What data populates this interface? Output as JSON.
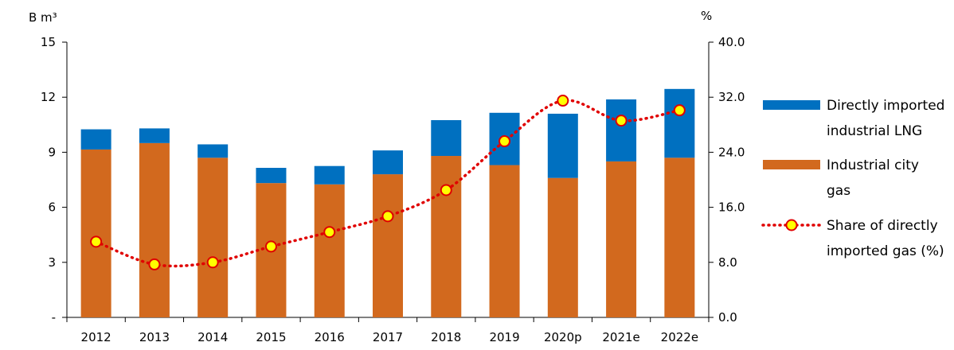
{
  "chart_data": {
    "type": "bar",
    "stacked": true,
    "categories": [
      "2012",
      "2013",
      "2014",
      "2015",
      "2016",
      "2017",
      "2018",
      "2019",
      "2020p",
      "2021e",
      "2022e"
    ],
    "series": [
      {
        "name": "Industrial city gas",
        "type": "bar",
        "axis": "left",
        "color": "#D2691E",
        "values": [
          9.15,
          9.5,
          8.7,
          7.32,
          7.25,
          7.8,
          8.8,
          8.3,
          7.6,
          8.5,
          8.7
        ]
      },
      {
        "name": "Directly imported industrial LNG",
        "type": "bar",
        "axis": "left",
        "color": "#0070C0",
        "values": [
          1.1,
          0.8,
          0.73,
          0.83,
          1.0,
          1.3,
          1.95,
          2.85,
          3.5,
          3.38,
          3.75
        ]
      },
      {
        "name": "Share of directly imported gas (%)",
        "type": "line",
        "axis": "right",
        "color": "#E00000",
        "marker_fill": "#FFFF00",
        "values": [
          11.0,
          7.7,
          8.0,
          10.3,
          12.4,
          14.7,
          18.5,
          25.6,
          31.5,
          28.6,
          30.1
        ]
      }
    ],
    "left_axis": {
      "label": "B m³",
      "range": [
        0,
        15
      ],
      "ticks": [
        "-",
        "3",
        "6",
        "9",
        "12",
        "15"
      ]
    },
    "right_axis": {
      "label": "%",
      "range": [
        0,
        40
      ],
      "ticks": [
        "0.0",
        "8.0",
        "16.0",
        "24.0",
        "32.0",
        "40.0"
      ]
    },
    "legend": {
      "placement": "right",
      "entries": [
        {
          "lines": [
            "Directly imported",
            "industrial LNG"
          ],
          "color": "#0070C0",
          "kind": "bar"
        },
        {
          "lines": [
            "Industrial city",
            "gas"
          ],
          "color": "#D2691E",
          "kind": "bar"
        },
        {
          "lines": [
            "Share of directly",
            "imported gas (%)"
          ],
          "color": "#E00000",
          "kind": "line"
        }
      ]
    },
    "grid": false
  }
}
